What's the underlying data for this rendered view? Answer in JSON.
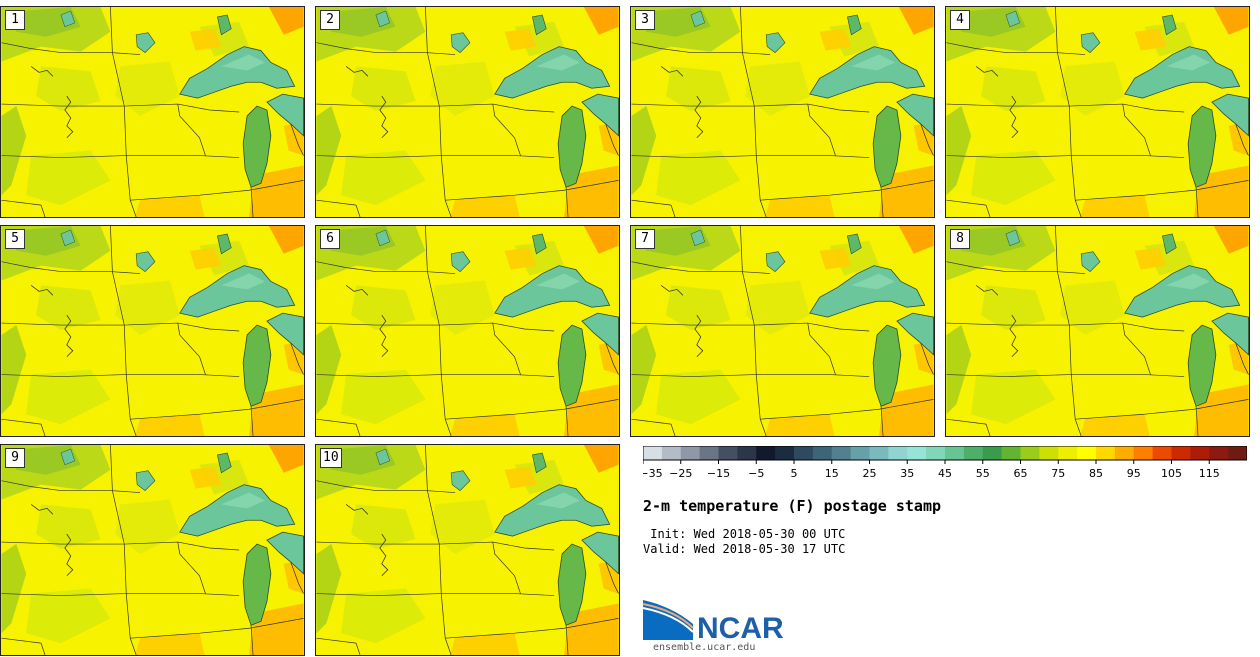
{
  "panels": [
    {
      "label": "1"
    },
    {
      "label": "2"
    },
    {
      "label": "3"
    },
    {
      "label": "4"
    },
    {
      "label": "5"
    },
    {
      "label": "6"
    },
    {
      "label": "7"
    },
    {
      "label": "8"
    },
    {
      "label": "9"
    },
    {
      "label": "10"
    }
  ],
  "colorbar": {
    "ticks": [
      "−35",
      "−25",
      "−15",
      "−5",
      "5",
      "15",
      "25",
      "35",
      "45",
      "55",
      "65",
      "75",
      "85",
      "95",
      "105",
      "115"
    ],
    "colors": [
      "#d8dee5",
      "#b3bcc6",
      "#8e98a6",
      "#6a7586",
      "#444f62",
      "#2b3649",
      "#101a2c",
      "#1c2c40",
      "#2e4a5e",
      "#3e6478",
      "#52808f",
      "#66a0a8",
      "#7ab9bc",
      "#8fd4d0",
      "#96e4d8",
      "#7fd6b8",
      "#68c492",
      "#4fae6a",
      "#3a9c4a",
      "#64b434",
      "#9ccc1a",
      "#cce006",
      "#eeee00",
      "#ffff00",
      "#ffd800",
      "#ffac00",
      "#ff7e00",
      "#ec4a00",
      "#cc2a00",
      "#ad1c08",
      "#8c1a10",
      "#6e1c12"
    ]
  },
  "legend": {
    "title": "2-m temperature (F) postage stamp",
    "init": " Init: Wed 2018-05-30 00 UTC",
    "valid": "Valid: Wed 2018-05-30 17 UTC"
  },
  "branding": {
    "logo_text": "NCAR",
    "url": "ensemble.ucar.edu"
  }
}
